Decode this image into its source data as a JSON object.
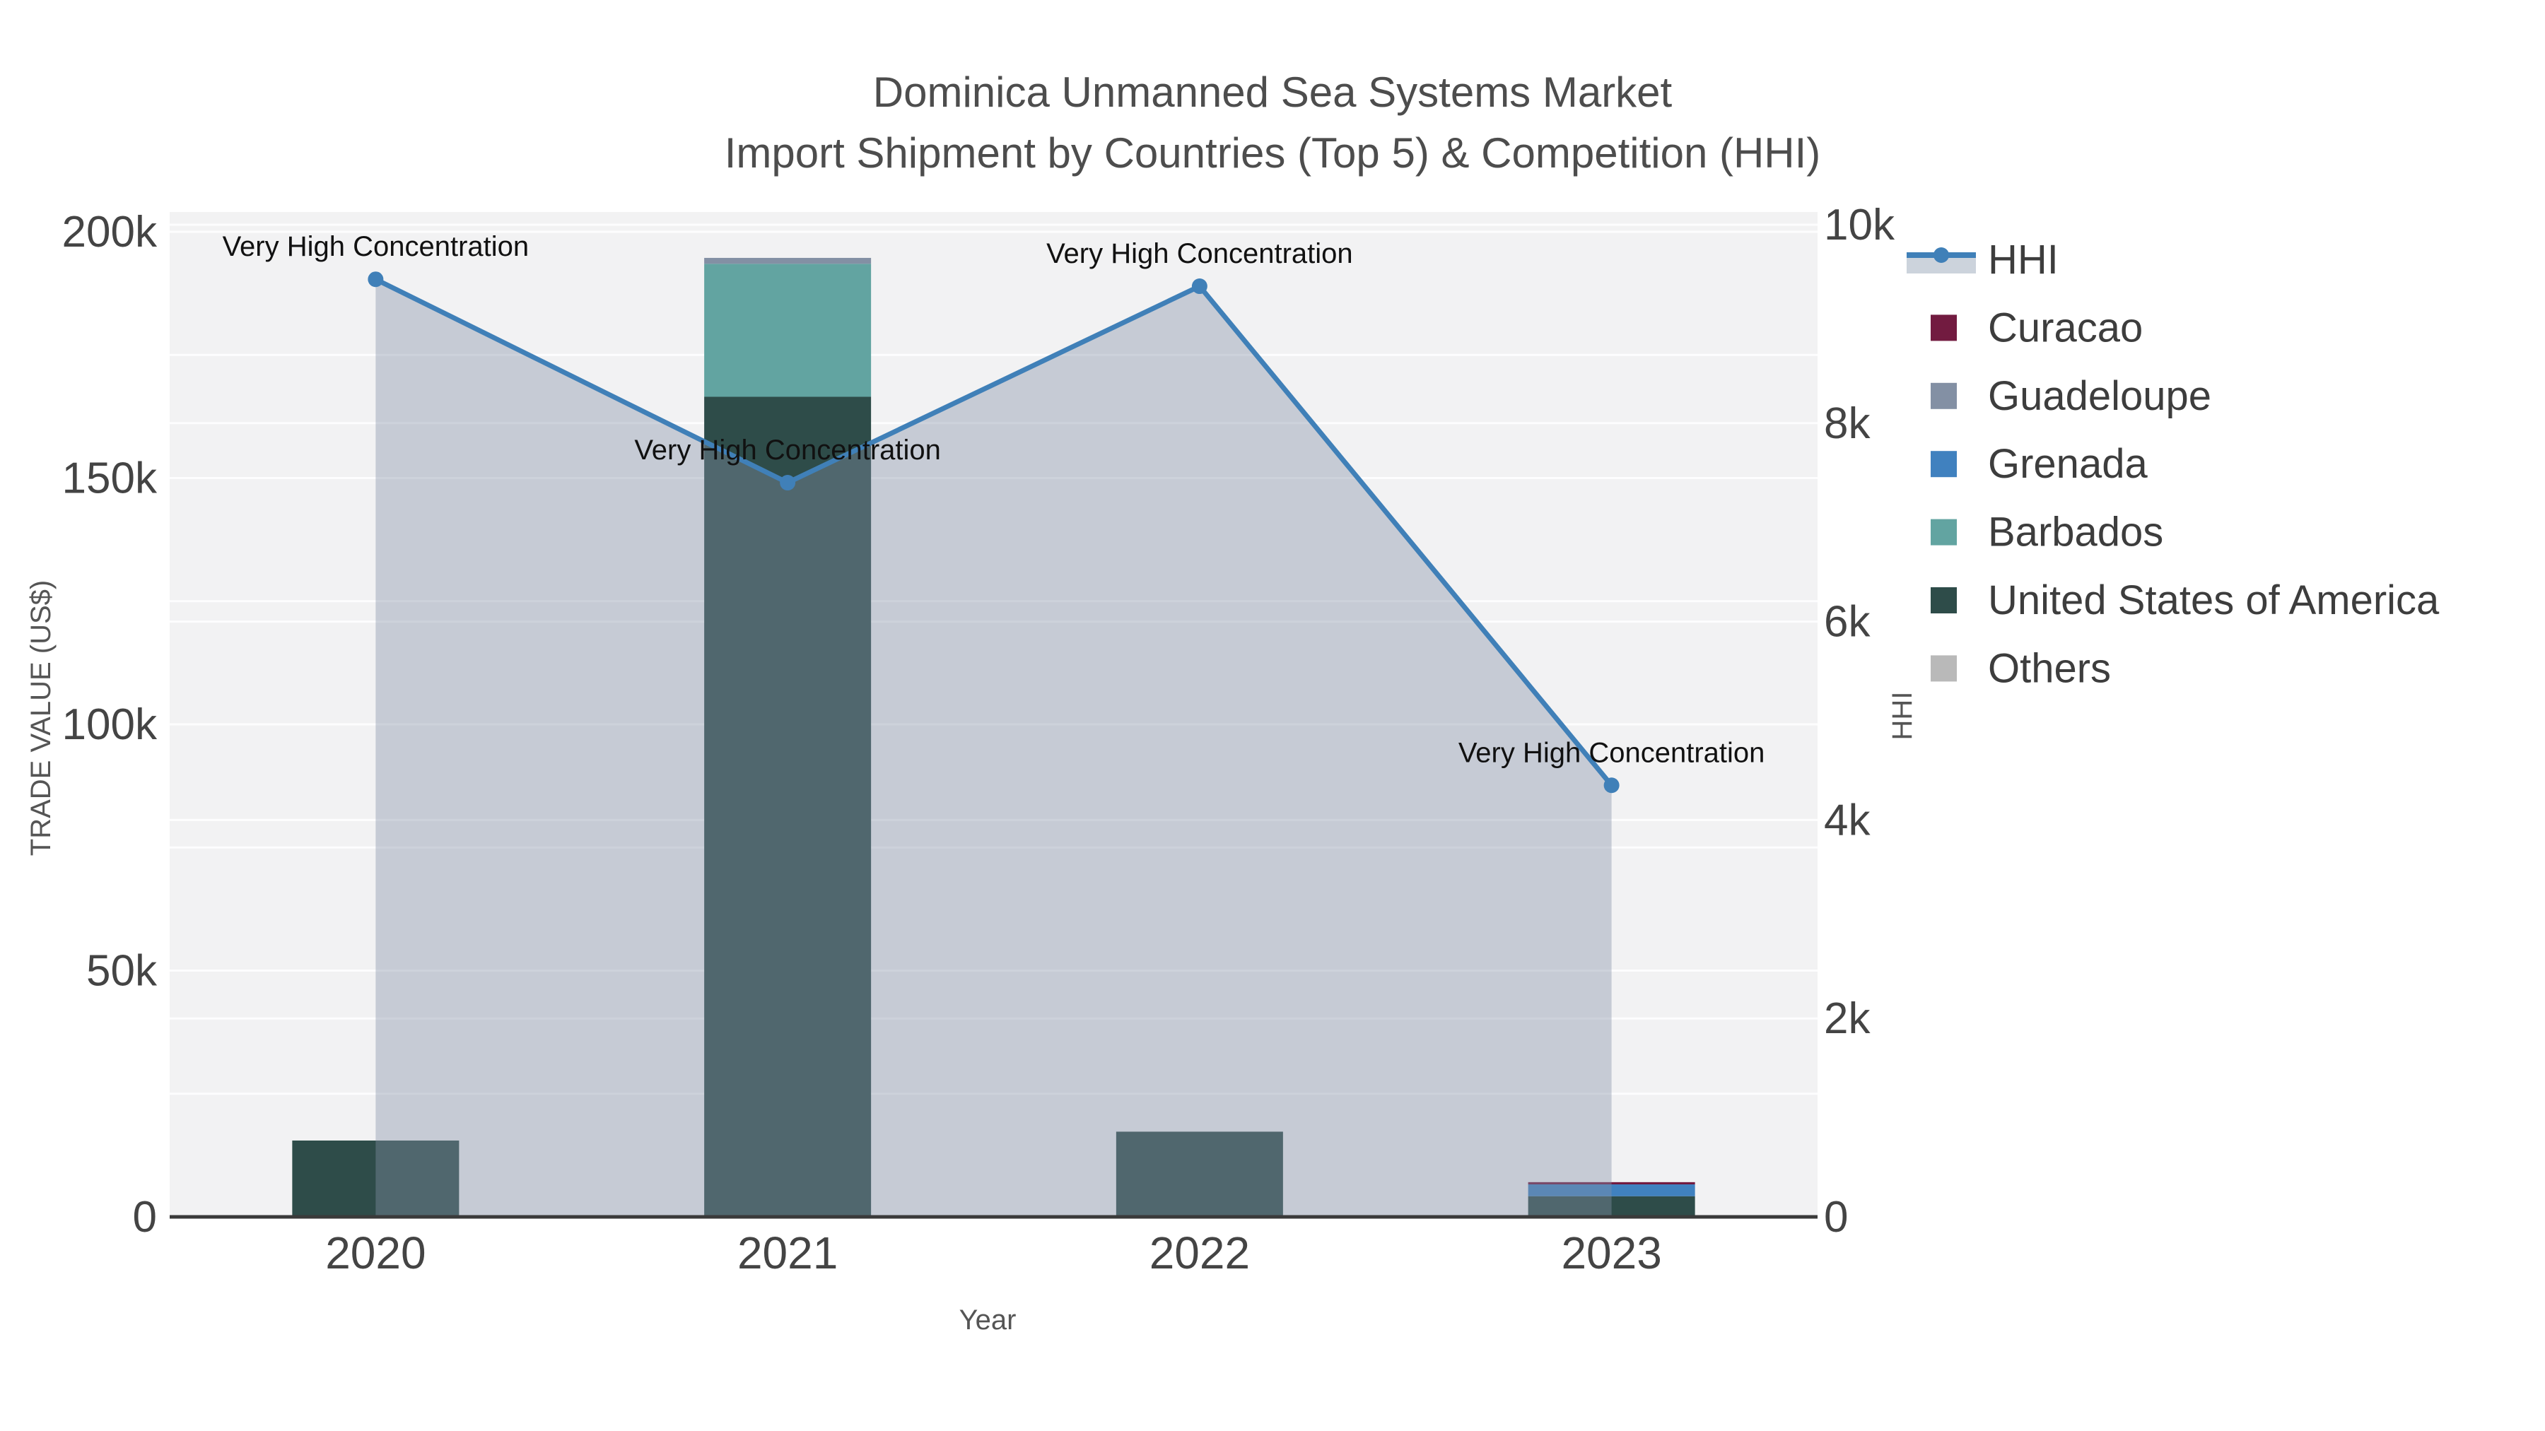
{
  "title": {
    "line1": "Dominica Unmanned Sea Systems Market",
    "line2": "Import Shipment by Countries (Top 5) & Competition (HHI)"
  },
  "axes": {
    "x_title": "Year",
    "left_title": "TRADE VALUE (US$)",
    "right_title": "HHI",
    "left_ticks": [
      {
        "value": 0,
        "label": "0"
      },
      {
        "value": 50000,
        "label": "50k"
      },
      {
        "value": 100000,
        "label": "100k"
      },
      {
        "value": 150000,
        "label": "150k"
      },
      {
        "value": 200000,
        "label": "200k"
      }
    ],
    "right_ticks": [
      {
        "value": 0,
        "label": "0"
      },
      {
        "value": 2000,
        "label": "2k"
      },
      {
        "value": 4000,
        "label": "4k"
      },
      {
        "value": 6000,
        "label": "6k"
      },
      {
        "value": 8000,
        "label": "8k"
      },
      {
        "value": 10000,
        "label": "10k"
      }
    ]
  },
  "chart_data": {
    "type": "bar+line",
    "title": "Dominica Unmanned Sea Systems Market — Import Shipment by Countries (Top 5) & Competition (HHI)",
    "categories": [
      "2020",
      "2021",
      "2022",
      "2023"
    ],
    "stack_order": [
      "United States of America",
      "Barbados",
      "Grenada",
      "Guadeloupe",
      "Curacao",
      "Others"
    ],
    "series": [
      {
        "name": "Curacao",
        "color": "#721B40",
        "values": [
          0,
          0,
          0,
          450
        ]
      },
      {
        "name": "Guadeloupe",
        "color": "#8390A4",
        "values": [
          0,
          1200,
          0,
          0
        ]
      },
      {
        "name": "Grenada",
        "color": "#4081BF",
        "values": [
          0,
          0,
          0,
          2400
        ]
      },
      {
        "name": "Barbados",
        "color": "#62A4A1",
        "values": [
          0,
          27000,
          0,
          0
        ]
      },
      {
        "name": "United States of America",
        "color": "#2E4C49",
        "values": [
          15500,
          166500,
          17300,
          4200
        ]
      },
      {
        "name": "Others",
        "color": "#B9B9B9",
        "values": [
          0,
          0,
          0,
          0
        ]
      }
    ],
    "line_series": {
      "name": "HHI",
      "color": "#4080B8",
      "area_fill": "rgba(133,146,167,0.40)",
      "values": [
        9450,
        7400,
        9380,
        4350
      ]
    },
    "annotations": [
      {
        "category": "2020",
        "text": "Very High Concentration"
      },
      {
        "category": "2021",
        "text": "Very High Concentration"
      },
      {
        "category": "2022",
        "text": "Very High Concentration"
      },
      {
        "category": "2023",
        "text": "Very High Concentration"
      }
    ],
    "xlabel": "Year",
    "ylabel_left": "TRADE VALUE (US$)",
    "ylabel_right": "HHI",
    "ylim_left": [
      0,
      200000
    ],
    "ylim_right": [
      0,
      10000
    ],
    "grid": true,
    "legend_position": "right",
    "style": {
      "plot_bg": "#F2F2F3",
      "grid_color": "rgba(255,255,255,0.85)",
      "axis_line_color": "#3A3A3A",
      "tick_color": "#444444",
      "annotation_color": "#111111",
      "legend_text_color": "#3D3D3D",
      "hhi_band_color": "#CCD3DC"
    }
  },
  "legend": {
    "items": [
      {
        "label": "HHI",
        "type": "line",
        "color": "#4080B8",
        "band_color": "#CCD3DC"
      },
      {
        "label": "Curacao",
        "type": "swatch",
        "color": "#721B40"
      },
      {
        "label": "Guadeloupe",
        "type": "swatch",
        "color": "#8390A4"
      },
      {
        "label": "Grenada",
        "type": "swatch",
        "color": "#4081BF"
      },
      {
        "label": "Barbados",
        "type": "swatch",
        "color": "#62A4A1"
      },
      {
        "label": "United States of America",
        "type": "swatch",
        "color": "#2E4C49"
      },
      {
        "label": "Others",
        "type": "swatch",
        "color": "#B9B9B9"
      }
    ]
  }
}
